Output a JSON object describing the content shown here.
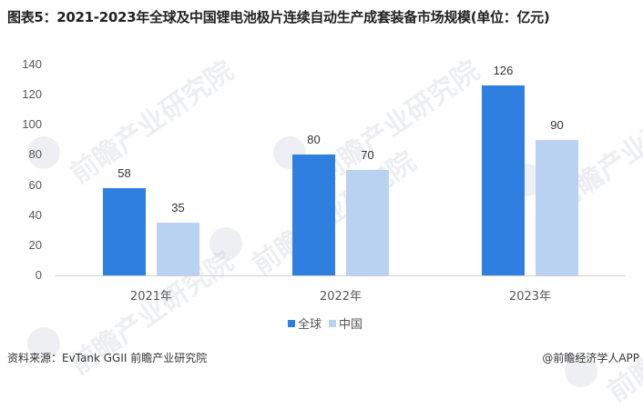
{
  "title": "图表5：2021-2023年全球及中国锂电池极片连续自动生产成套装备市场规模(单位：亿元)",
  "watermark": "前瞻产业研究院",
  "legend": {
    "items": [
      {
        "label": "全球",
        "color": "#2F7FE0"
      },
      {
        "label": "中国",
        "color": "#B9D2F2"
      }
    ]
  },
  "footer": {
    "source": "资料来源：EvTank GGII 前瞻产业研究院",
    "credit": "@前瞻经济学人APP"
  },
  "chart_data": {
    "type": "bar",
    "title": "2021-2023年全球及中国锂电池极片连续自动生产成套装备市场规模(单位：亿元)",
    "categories": [
      "2021年",
      "2022年",
      "2023年"
    ],
    "series": [
      {
        "name": "全球",
        "values": [
          58,
          80,
          126
        ],
        "color": "#2F7FE0"
      },
      {
        "name": "中国",
        "values": [
          35,
          70,
          90
        ],
        "color": "#B9D2F2"
      }
    ],
    "xlabel": "",
    "ylabel": "亿元",
    "ylim": [
      0,
      140
    ],
    "yticks": [
      0,
      20,
      40,
      60,
      80,
      100,
      120,
      140
    ],
    "grid": false,
    "legend_position": "bottom",
    "data_labels": true
  }
}
